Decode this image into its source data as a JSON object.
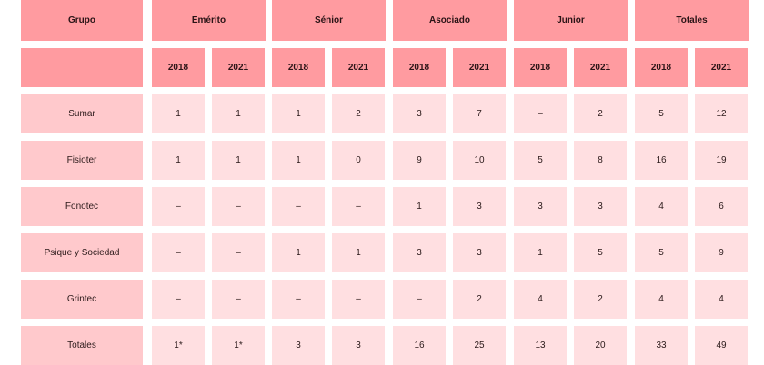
{
  "table": {
    "corner_header": "Grupo",
    "group_headers": [
      "Emérito",
      "Sénior",
      "Asociado",
      "Junior",
      "Totales"
    ],
    "year_headers": [
      "2018",
      "2021",
      "2018",
      "2021",
      "2018",
      "2021",
      "2018",
      "2021",
      "2018",
      "2021"
    ],
    "rows": [
      {
        "label": "Sumar",
        "values": [
          "1",
          "1",
          "1",
          "2",
          "3",
          "7",
          "–",
          "2",
          "5",
          "12"
        ]
      },
      {
        "label": "Fisioter",
        "values": [
          "1",
          "1",
          "1",
          "0",
          "9",
          "10",
          "5",
          "8",
          "16",
          "19"
        ]
      },
      {
        "label": "Fonotec",
        "values": [
          "–",
          "–",
          "–",
          "–",
          "1",
          "3",
          "3",
          "3",
          "4",
          "6"
        ]
      },
      {
        "label": "Psique y Sociedad",
        "values": [
          "–",
          "–",
          "1",
          "1",
          "3",
          "3",
          "1",
          "5",
          "5",
          "9"
        ]
      },
      {
        "label": "Grintec",
        "values": [
          "–",
          "–",
          "–",
          "–",
          "–",
          "2",
          "4",
          "2",
          "4",
          "4"
        ]
      },
      {
        "label": "Totales",
        "values": [
          "1*",
          "1*",
          "3",
          "3",
          "16",
          "25",
          "13",
          "20",
          "33",
          "49"
        ]
      }
    ]
  },
  "colors": {
    "header": "#ff9ba0",
    "row_label": "#ffc9cc",
    "cell": "#ffdfe1"
  }
}
